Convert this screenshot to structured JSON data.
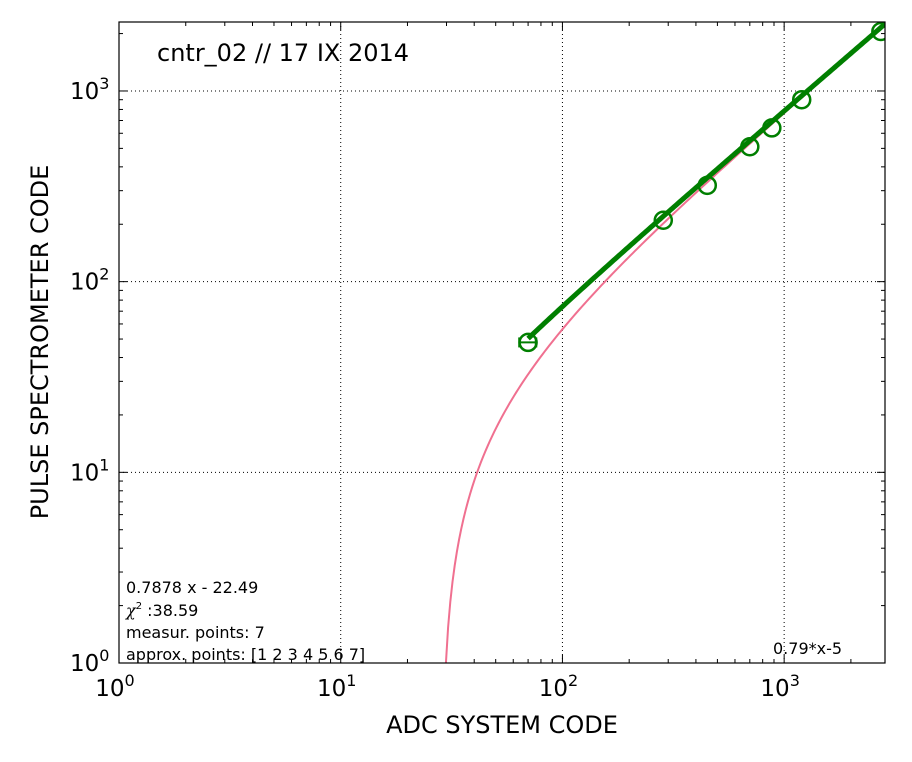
{
  "chart_data": {
    "type": "scatter",
    "title": "cntr_02 // 17 IX 2014",
    "xlabel": "ADC  SYSTEM  CODE",
    "ylabel": "PULSE  SPECTROMETER  CODE",
    "x_scale": "log",
    "y_scale": "log",
    "xlim": [
      1,
      2850
    ],
    "ylim": [
      1,
      2300
    ],
    "grid": true,
    "x_ticks": [
      {
        "value": 1,
        "base": "10",
        "exp": "0"
      },
      {
        "value": 10,
        "base": "10",
        "exp": "1"
      },
      {
        "value": 100,
        "base": "10",
        "exp": "2"
      },
      {
        "value": 1000,
        "base": "10",
        "exp": "3"
      }
    ],
    "y_ticks": [
      {
        "value": 1,
        "base": "10",
        "exp": "0"
      },
      {
        "value": 10,
        "base": "10",
        "exp": "1"
      },
      {
        "value": 100,
        "base": "10",
        "exp": "2"
      },
      {
        "value": 1000,
        "base": "10",
        "exp": "3"
      }
    ],
    "measured_points": {
      "color": "#007f00",
      "x": [
        70,
        285,
        450,
        700,
        880,
        1200,
        2730
      ],
      "y": [
        48,
        210,
        320,
        510,
        640,
        900,
        2050
      ],
      "x_err": [
        6,
        0,
        0,
        0,
        0,
        0,
        0
      ]
    },
    "fit_curve": {
      "color": "#f07090",
      "label": "0.7878 x - 22.49",
      "slope": 0.7878,
      "intercept": -22.49
    },
    "reference_line": {
      "color": "#007f00",
      "label": "0.79*x-5",
      "slope": 0.79,
      "intercept": -5
    },
    "annotations": {
      "fit_equation": "0.7878 x - 22.49",
      "chi2_symbol": "χ",
      "chi2_exp": "2",
      "chi2_value": " :38.59",
      "measured_points": "measur. points: 7",
      "approx_points": "approx. points: [1 2 3 4 5 6 7]",
      "reference_label": "0.79*x-5"
    }
  }
}
